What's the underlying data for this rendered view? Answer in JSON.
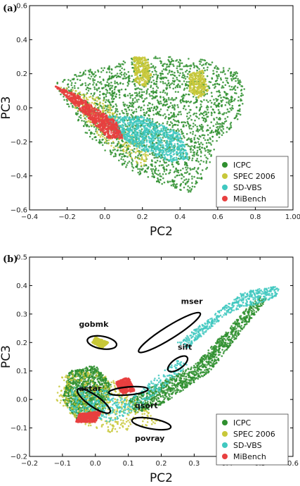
{
  "chart_data": [
    {
      "type": "scatter",
      "panel_label": "(a)",
      "xlabel": "PC2",
      "ylabel": "PC3",
      "xlim": [
        -0.4,
        1.0
      ],
      "ylim": [
        -0.6,
        0.6
      ],
      "xticks": [
        -0.4,
        -0.2,
        0.0,
        0.2,
        0.4,
        0.6,
        0.8,
        1.0
      ],
      "yticks": [
        -0.6,
        -0.4,
        -0.2,
        0.0,
        0.2,
        0.4,
        0.6
      ],
      "xtick_labels": [
        "−0.4",
        "−0.2",
        "0.0",
        "0.2",
        "0.4",
        "0.6",
        "0.8",
        "1.00"
      ],
      "ytick_labels": [
        "−0.6",
        "−0.4",
        "−0.2",
        "0.0",
        "0.2",
        "0.4",
        "0.6"
      ],
      "grid": false,
      "legend_position": "bottom-right",
      "series": [
        {
          "name": "ICPC",
          "color": "#2f8f2f",
          "clusters": [
            {
              "polygon": [
                [
                  -0.27,
                  0.15
                ],
                [
                  -0.1,
                  0.22
                ],
                [
                  0.05,
                  0.25
                ],
                [
                  0.15,
                  0.3
                ],
                [
                  0.35,
                  0.3
                ],
                [
                  0.55,
                  0.28
                ],
                [
                  0.7,
                  0.22
                ],
                [
                  0.75,
                  0.1
                ],
                [
                  0.72,
                  -0.05
                ],
                [
                  0.68,
                  -0.12
                ],
                [
                  0.6,
                  -0.18
                ],
                [
                  0.55,
                  -0.35
                ],
                [
                  0.5,
                  -0.45
                ],
                [
                  0.45,
                  -0.5
                ],
                [
                  0.3,
                  -0.45
                ],
                [
                  0.1,
                  -0.35
                ],
                [
                  -0.1,
                  -0.15
                ],
                [
                  -0.22,
                  0.05
                ]
              ],
              "values": []
            }
          ]
        },
        {
          "name": "SPEC 2006",
          "color": "#c8c83a",
          "clusters": [
            {
              "polygon": [
                [
                  0.15,
                  0.3
                ],
                [
                  0.22,
                  0.3
                ],
                [
                  0.25,
                  0.2
                ],
                [
                  0.22,
                  0.12
                ],
                [
                  0.16,
                  0.15
                ]
              ],
              "values": []
            },
            {
              "polygon": [
                [
                  0.45,
                  0.2
                ],
                [
                  0.52,
                  0.22
                ],
                [
                  0.55,
                  0.1
                ],
                [
                  0.5,
                  0.05
                ],
                [
                  0.45,
                  0.1
                ]
              ],
              "values": []
            },
            {
              "polygon": [
                [
                  -0.25,
                  0.13
                ],
                [
                  -0.15,
                  0.1
                ],
                [
                  0.0,
                  0.05
                ],
                [
                  0.1,
                  -0.1
                ],
                [
                  0.25,
                  -0.3
                ],
                [
                  0.2,
                  -0.35
                ],
                [
                  0.0,
                  -0.2
                ],
                [
                  -0.2,
                  0.05
                ]
              ],
              "values": []
            }
          ]
        },
        {
          "name": "SD-VBS",
          "color": "#40c8c0",
          "clusters": [
            {
              "polygon": [
                [
                  0.0,
                  -0.05
                ],
                [
                  0.2,
                  -0.05
                ],
                [
                  0.4,
                  -0.15
                ],
                [
                  0.45,
                  -0.3
                ],
                [
                  0.35,
                  -0.32
                ],
                [
                  0.2,
                  -0.25
                ],
                [
                  0.05,
                  -0.15
                ]
              ],
              "values": []
            }
          ]
        },
        {
          "name": "MiBench",
          "color": "#e84040",
          "clusters": [
            {
              "polygon": [
                [
                  -0.27,
                  0.13
                ],
                [
                  -0.15,
                  0.08
                ],
                [
                  -0.05,
                  0.0
                ],
                [
                  0.06,
                  -0.08
                ],
                [
                  0.1,
                  -0.18
                ],
                [
                  0.02,
                  -0.18
                ],
                [
                  -0.1,
                  -0.05
                ],
                [
                  -0.22,
                  0.08
                ]
              ],
              "values": []
            }
          ]
        }
      ]
    },
    {
      "type": "scatter",
      "panel_label": "(b)",
      "xlabel": "PC2",
      "ylabel": "PC3",
      "xlim": [
        -0.2,
        0.6
      ],
      "ylim": [
        -0.2,
        0.5
      ],
      "xticks": [
        -0.2,
        -0.1,
        0.0,
        0.1,
        0.2,
        0.3,
        0.4,
        0.5,
        0.6
      ],
      "yticks": [
        -0.2,
        -0.1,
        0.0,
        0.1,
        0.2,
        0.3,
        0.4,
        0.5
      ],
      "xtick_labels": [
        "−0.2",
        "−0.1",
        "0.0",
        "0.1",
        "0.2",
        "0.3",
        "0.4",
        "0.5",
        "0.6"
      ],
      "ytick_labels": [
        "−0.2",
        "−0.1",
        "0.0",
        "0.1",
        "0.2",
        "0.3",
        "0.4",
        "0.5"
      ],
      "grid": false,
      "legend_position": "bottom-right",
      "series": [
        {
          "name": "ICPC",
          "color": "#2f8f2f",
          "clusters": [
            {
              "polygon": [
                [
                  0.1,
                  0.0
                ],
                [
                  0.3,
                  0.12
                ],
                [
                  0.5,
                  0.37
                ],
                [
                  0.52,
                  0.35
                ],
                [
                  0.35,
                  0.1
                ],
                [
                  0.2,
                  -0.02
                ],
                [
                  0.12,
                  -0.05
                ]
              ],
              "values": []
            },
            {
              "polygon": [
                [
                  -0.08,
                  0.1
                ],
                [
                  0.0,
                  0.12
                ],
                [
                  0.05,
                  0.05
                ],
                [
                  0.02,
                  -0.05
                ],
                [
                  -0.05,
                  -0.08
                ],
                [
                  -0.1,
                  0.0
                ]
              ],
              "values": []
            }
          ]
        },
        {
          "name": "SPEC 2006",
          "color": "#c8c83a",
          "clusters": [
            {
              "polygon": [
                [
                  -0.1,
                  0.09
                ],
                [
                  0.0,
                  0.1
                ],
                [
                  0.08,
                  0.05
                ],
                [
                  0.2,
                  -0.08
                ],
                [
                  0.05,
                  -0.12
                ],
                [
                  -0.05,
                  -0.08
                ],
                [
                  -0.12,
                  0.0
                ]
              ],
              "values": []
            },
            {
              "polygon": [
                [
                  0.0,
                  0.22
                ],
                [
                  0.04,
                  0.2
                ],
                [
                  0.02,
                  0.18
                ],
                [
                  -0.01,
                  0.2
                ]
              ],
              "values": []
            }
          ]
        },
        {
          "name": "SD-VBS",
          "color": "#40c8c0",
          "clusters": [
            {
              "polygon": [
                [
                  -0.07,
                  0.05
                ],
                [
                  0.02,
                  0.04
                ],
                [
                  0.1,
                  0.0
                ],
                [
                  0.25,
                  0.14
                ],
                [
                  0.28,
                  0.12
                ],
                [
                  0.15,
                  -0.02
                ],
                [
                  0.05,
                  -0.08
                ],
                [
                  -0.08,
                  -0.05
                ]
              ],
              "values": []
            },
            {
              "polygon": [
                [
                  0.25,
                  0.2
                ],
                [
                  0.45,
                  0.38
                ],
                [
                  0.56,
                  0.4
                ],
                [
                  0.55,
                  0.36
                ],
                [
                  0.4,
                  0.3
                ],
                [
                  0.28,
                  0.18
                ]
              ],
              "values": []
            }
          ]
        },
        {
          "name": "MiBench",
          "color": "#e84040",
          "clusters": [
            {
              "polygon": [
                [
                  0.06,
                  0.06
                ],
                [
                  0.1,
                  0.08
                ],
                [
                  0.12,
                  0.03
                ],
                [
                  0.08,
                  0.02
                ]
              ],
              "values": []
            },
            {
              "polygon": [
                [
                  -0.05,
                  -0.05
                ],
                [
                  0.02,
                  -0.04
                ],
                [
                  0.0,
                  -0.08
                ],
                [
                  -0.06,
                  -0.08
                ]
              ],
              "values": []
            }
          ]
        }
      ],
      "annotations": [
        {
          "text": "gobmk",
          "cx": 0.02,
          "cy": 0.2,
          "rx": 0.045,
          "ry": 0.022,
          "angle": 10,
          "label_x": -0.05,
          "label_y": 0.255
        },
        {
          "text": "mser",
          "cx": 0.225,
          "cy": 0.235,
          "rx": 0.11,
          "ry": 0.022,
          "angle": -32,
          "label_x": 0.26,
          "label_y": 0.335
        },
        {
          "text": "sift",
          "cx": 0.25,
          "cy": 0.125,
          "rx": 0.035,
          "ry": 0.018,
          "angle": -35,
          "label_x": 0.25,
          "label_y": 0.175
        },
        {
          "text": "astar",
          "cx": -0.005,
          "cy": -0.005,
          "rx": 0.06,
          "ry": 0.02,
          "angle": 35,
          "label_x": -0.05,
          "label_y": 0.03
        },
        {
          "text": "qsort",
          "cx": 0.1,
          "cy": 0.03,
          "rx": 0.06,
          "ry": 0.014,
          "angle": -5,
          "label_x": 0.12,
          "label_y": -0.03
        },
        {
          "text": "povray",
          "cx": 0.17,
          "cy": -0.085,
          "rx": 0.06,
          "ry": 0.018,
          "angle": 10,
          "label_x": 0.12,
          "label_y": -0.145
        }
      ]
    }
  ]
}
